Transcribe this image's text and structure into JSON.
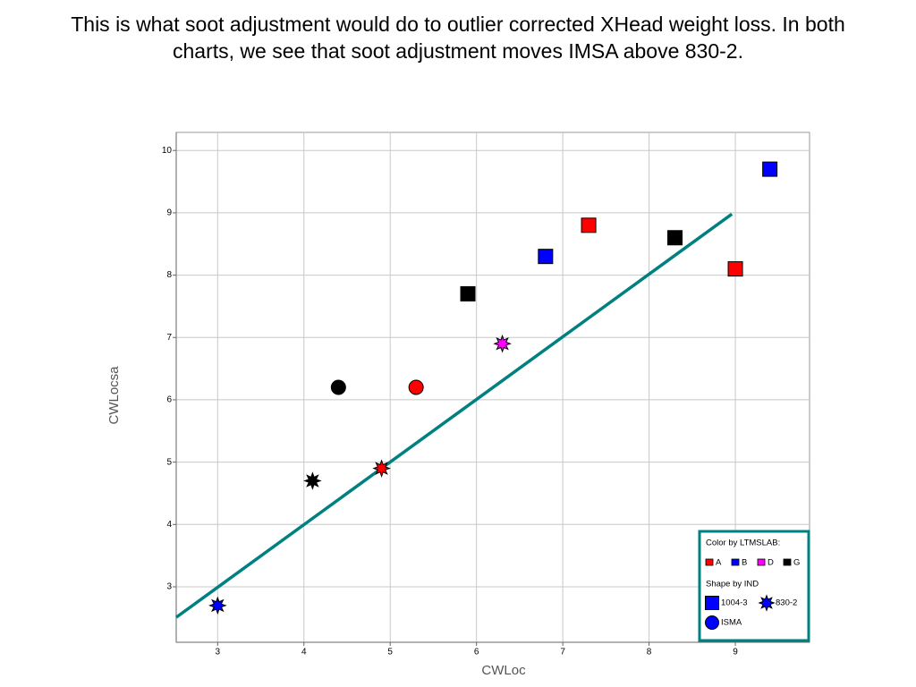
{
  "chart_data": {
    "type": "scatter",
    "title": "This is what soot adjustment would do to outlier corrected XHead weight loss. In both charts, we see that soot adjustment moves IMSA above 830-2.",
    "x_label": "CWLoc",
    "y_label": "CWLocsa",
    "xlim": [
      2.52,
      9.86
    ],
    "ylim": [
      2.11,
      10.29
    ],
    "xticks": [
      3,
      4,
      5,
      6,
      7,
      8,
      9
    ],
    "yticks": [
      3,
      4,
      5,
      6,
      7,
      8,
      9,
      10
    ],
    "grid": true,
    "x": [
      9.4,
      7.3,
      8.3,
      6.8,
      9.0,
      5.9,
      6.3,
      4.4,
      5.3,
      4.1,
      4.9,
      3.0
    ],
    "y": [
      9.7,
      8.8,
      8.6,
      8.3,
      8.1,
      7.7,
      6.9,
      6.2,
      6.2,
      4.7,
      4.9,
      2.7
    ],
    "lab": [
      "B",
      "A",
      "G",
      "B",
      "A",
      "G",
      "D",
      "G",
      "A",
      "G",
      "A",
      "B"
    ],
    "ind": [
      "1004-3",
      "1004-3",
      "1004-3",
      "1004-3",
      "1004-3",
      "1004-3",
      "830-2",
      "ISMA",
      "ISMA",
      "830-2",
      "830-2",
      "830-2"
    ],
    "trend_line": {
      "x": [
        2.52,
        8.96
      ],
      "y": [
        2.51,
        8.98
      ],
      "color": "#008080"
    },
    "legend": {
      "position": "bottom-right",
      "color_title": "Color by LTMSLAB:",
      "colors": [
        {
          "name": "A",
          "color": "#ff0000"
        },
        {
          "name": "B",
          "color": "#0000ff"
        },
        {
          "name": "D",
          "color": "#ff00ff"
        },
        {
          "name": "G",
          "color": "#000000"
        }
      ],
      "shape_title": "Shape by IND",
      "shapes": [
        {
          "name": "1004-3",
          "shape": "square"
        },
        {
          "name": "830-2",
          "shape": "star"
        },
        {
          "name": "ISMA",
          "shape": "circle"
        }
      ]
    }
  }
}
